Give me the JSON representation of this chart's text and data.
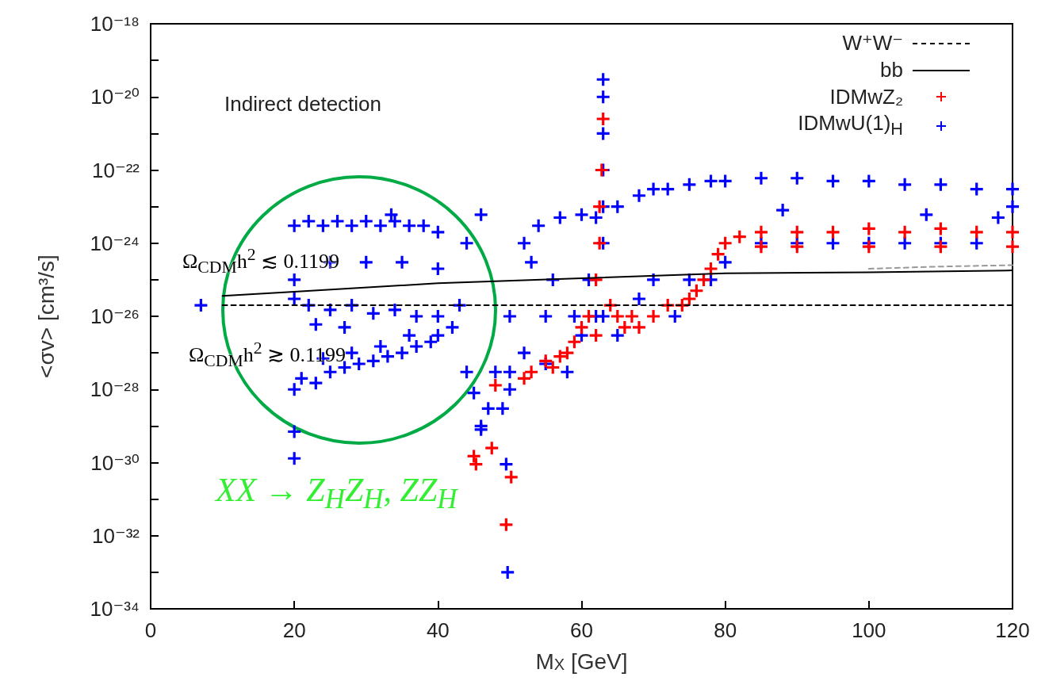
{
  "chart_data": {
    "type": "scatter",
    "annotations": [
      "Indirect detection",
      "Ω$_{CDM}$h$^{2}$ ≲ 0.1199",
      "Ω$_{CDM}$h$^{2}$ ≳ 0.1199",
      "XX → Z$_{H}$Z$_{H}$, ZZ$_{H}$"
    ],
    "xlabel": "M$_{X}$ [GeV]",
    "ylabel": "<σv> [cm³/s]",
    "xlim": [
      0,
      120
    ],
    "xticks": [
      0,
      20,
      40,
      60,
      80,
      100,
      120
    ],
    "ylim": [
      1e-34,
      1e-18
    ],
    "log": "y",
    "yticks": [
      {
        "value": 1e-34,
        "label": "10⁻³⁴"
      },
      {
        "value": 1e-33,
        "label": null
      },
      {
        "value": 1e-32,
        "label": "10⁻³²"
      },
      {
        "value": 1e-31,
        "label": null
      },
      {
        "value": 1e-30,
        "label": "10⁻³⁰"
      },
      {
        "value": 1e-29,
        "label": null
      },
      {
        "value": 1e-28,
        "label": "10⁻²⁸"
      },
      {
        "value": 1e-27,
        "label": null
      },
      {
        "value": 1e-26,
        "label": "10⁻²⁶"
      },
      {
        "value": 1e-25,
        "label": null
      },
      {
        "value": 1e-24,
        "label": "10⁻²⁴"
      },
      {
        "value": 1e-23,
        "label": null
      },
      {
        "value": 1e-22,
        "label": "10⁻²²"
      },
      {
        "value": 1e-21,
        "label": null
      },
      {
        "value": 1e-20,
        "label": "10⁻²⁰"
      },
      {
        "value": 1e-19,
        "label": null
      },
      {
        "value": 1e-18,
        "label": "10⁻¹⁸"
      }
    ],
    "grid": false,
    "legend": "top right",
    "series": [
      {
        "name": "W⁺W⁻",
        "type": "line",
        "color": "#000000",
        "line_style": "dashed",
        "marker": "none",
        "x": [
          10,
          120
        ],
        "values": [
          2e-26,
          2e-26
        ]
      },
      {
        "type": "line",
        "color": "#999999",
        "line_style": "dashed",
        "marker": "none",
        "x": [
          100,
          110,
          120
        ],
        "values": [
          2e-25,
          2.3e-25,
          2.5e-25
        ]
      },
      {
        "name": "bb",
        "type": "line",
        "color": "#000000",
        "line_style": "solid",
        "marker": "none",
        "x": [
          10,
          20,
          40,
          60,
          80,
          100,
          120
        ],
        "values": [
          3.6e-26,
          4.7e-26,
          8e-26,
          1.1e-25,
          1.5e-25,
          1.6e-25,
          1.8e-25
        ]
      },
      {
        "name": "IDMwZ₂",
        "color": "#ff0000",
        "marker": "cross",
        "x": [
          45.3,
          47.5,
          45,
          50.2,
          49.5,
          48,
          52,
          53,
          55,
          56,
          57,
          58,
          59,
          60,
          61,
          62,
          62.5,
          62.5,
          62.8,
          63,
          62,
          64,
          65,
          66,
          67,
          68,
          70,
          72,
          74,
          75,
          76,
          77,
          78,
          79,
          80,
          82,
          85,
          85,
          90,
          95,
          100,
          100,
          105,
          110,
          115,
          120,
          120,
          110,
          90
        ],
        "values": [
          9e-31,
          2.5e-30,
          1.5e-30,
          4e-31,
          2e-32,
          1.3e-28,
          2e-28,
          3e-28,
          6e-28,
          4e-28,
          8e-28,
          1e-27,
          2e-27,
          5e-27,
          1e-26,
          1e-25,
          1e-24,
          1e-23,
          1e-22,
          2.5e-21,
          3e-27,
          2e-26,
          1e-26,
          5e-27,
          1e-26,
          5e-27,
          1e-26,
          2e-26,
          2e-26,
          3e-26,
          5e-26,
          1e-25,
          2e-25,
          5e-25,
          1e-24,
          1.5e-24,
          2e-24,
          8e-25,
          2e-24,
          2e-24,
          2.5e-24,
          8e-25,
          2e-24,
          2.5e-24,
          2e-24,
          2e-24,
          8e-25,
          8e-25,
          8e-25
        ]
      },
      {
        "name": "IDMwU(1)$_{H}$",
        "color": "#0000ff",
        "marker": "cross",
        "x": [
          20,
          20,
          20,
          22,
          24,
          26,
          28,
          30,
          32,
          34,
          36,
          38,
          40,
          33.5,
          22,
          25,
          28,
          31,
          34,
          37,
          40,
          25,
          30,
          35,
          40,
          23,
          27,
          20,
          21,
          23,
          25,
          27,
          29,
          31,
          33,
          35,
          37,
          39,
          40,
          24,
          28,
          32,
          36,
          20,
          20,
          7,
          42,
          43,
          44,
          45,
          46,
          47,
          46,
          44,
          48,
          49.5,
          49.7,
          46,
          49,
          50,
          50,
          52,
          52,
          54,
          55,
          56,
          57,
          58,
          59,
          60,
          60,
          61,
          62,
          62,
          55,
          50,
          53,
          63,
          63,
          63,
          63,
          63,
          63,
          63,
          65,
          65,
          68,
          68,
          70,
          70,
          72,
          73,
          75,
          75,
          78,
          78,
          80,
          80,
          85,
          85,
          90,
          90,
          95,
          95,
          100,
          100,
          105,
          105,
          110,
          110,
          115,
          115,
          120,
          120,
          88,
          108,
          118
        ],
        "values": [
          3e-24,
          1e-25,
          3e-26,
          4e-24,
          3e-24,
          4e-24,
          3e-24,
          4e-24,
          3e-24,
          4e-24,
          3e-24,
          3e-24,
          2e-24,
          6e-24,
          2e-26,
          1.5e-26,
          2e-26,
          1.2e-26,
          1.5e-26,
          1e-26,
          1e-26,
          3e-25,
          3e-25,
          3e-25,
          2e-25,
          6e-27,
          5e-27,
          1e-28,
          2e-28,
          1.5e-28,
          3e-28,
          4e-28,
          5e-28,
          6e-28,
          8e-28,
          1e-27,
          1.5e-27,
          2e-27,
          3e-27,
          7e-28,
          1e-27,
          1.5e-27,
          3e-27,
          7e-30,
          1.3e-30,
          2e-26,
          5e-27,
          2e-26,
          3e-28,
          8e-29,
          1e-29,
          3e-29,
          6e-24,
          1e-24,
          3e-28,
          9e-31,
          1e-33,
          8e-30,
          3e-29,
          1e-28,
          3e-28,
          1e-24,
          1e-27,
          3e-24,
          5e-28,
          1e-25,
          5e-24,
          3e-28,
          1e-26,
          6e-24,
          3e-27,
          1e-25,
          5e-24,
          1e-26,
          1e-26,
          1e-26,
          3e-25,
          3e-20,
          1e-20,
          1e-21,
          1e-22,
          1e-23,
          1e-24,
          1e-26,
          1e-23,
          3e-27,
          2e-23,
          3e-26,
          3e-23,
          1e-25,
          3e-23,
          1e-26,
          4e-23,
          1e-25,
          5e-23,
          1e-25,
          5e-23,
          3e-25,
          6e-23,
          1e-24,
          6e-23,
          1e-24,
          5e-23,
          1e-24,
          5e-23,
          1e-24,
          4e-23,
          1e-24,
          4e-23,
          1e-24,
          3e-23,
          1e-24,
          3e-23,
          1e-23,
          8e-24,
          6e-24,
          5e-24
        ]
      }
    ]
  }
}
